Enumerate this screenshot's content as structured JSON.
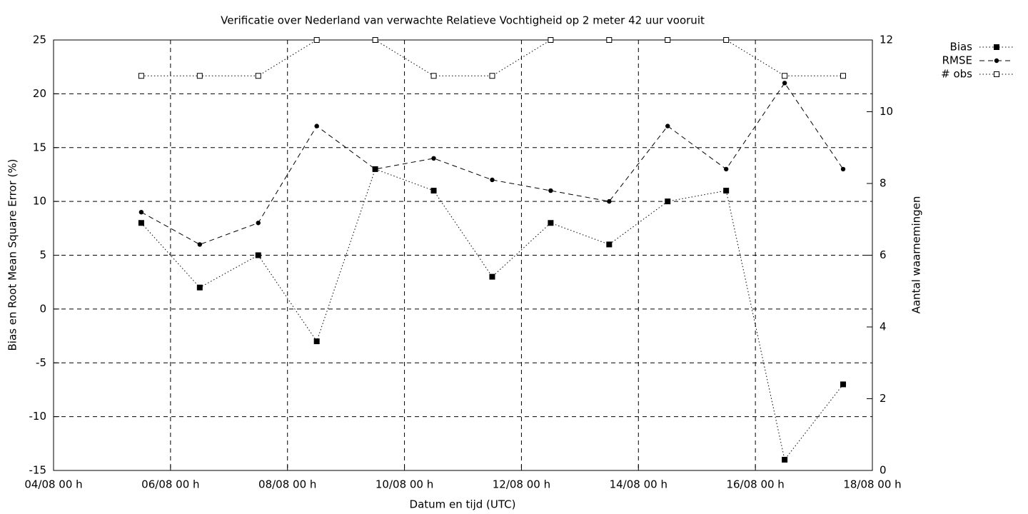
{
  "chart_data": {
    "type": "line",
    "title": "Verificatie over Nederland van verwachte Relatieve Vochtigheid op 2 meter 42 uur vooruit",
    "xlabel": "Datum en tijd (UTC)",
    "ylabel": "Bias en Root Mean Square Error (%)",
    "y2label": "Aantal waarnemingen",
    "x": [
      "05/08 12 h",
      "06/08 12 h",
      "07/08 12 h",
      "08/08 12 h",
      "09/08 12 h",
      "10/08 12 h",
      "11/08 12 h",
      "12/08 12 h",
      "13/08 12 h",
      "14/08 12 h",
      "15/08 12 h",
      "16/08 12 h",
      "17/08 12 h"
    ],
    "series": [
      {
        "name": "Bias",
        "color": "#000000",
        "dash": "dotted",
        "marker": "filled-square",
        "values": [
          8,
          2,
          5,
          -3,
          13,
          11,
          3,
          8,
          6,
          10,
          11,
          -14,
          -7
        ]
      },
      {
        "name": "RMSE",
        "color": "#000000",
        "dash": "dashed",
        "marker": "filled-circle",
        "values": [
          9,
          6,
          8,
          17,
          13,
          14,
          12,
          11,
          10,
          17,
          13,
          21,
          13
        ]
      },
      {
        "name": "# obs",
        "color": "#000000",
        "dash": "dotted",
        "marker": "open-square",
        "axis": "y2",
        "values": [
          11,
          11,
          11,
          12,
          12,
          11,
          11,
          12,
          12,
          12,
          12,
          11,
          11
        ]
      }
    ],
    "xlim": [
      "04/08 00 h",
      "18/08 00 h"
    ],
    "xticks": [
      "04/08 00 h",
      "06/08 00 h",
      "08/08 00 h",
      "10/08 00 h",
      "12/08 00 h",
      "14/08 00 h",
      "16/08 00 h",
      "18/08 00 h"
    ],
    "ylim": [
      -15,
      25
    ],
    "yticks": [
      -15,
      -10,
      -5,
      0,
      5,
      10,
      15,
      20,
      25
    ],
    "y2lim": [
      0,
      12
    ],
    "y2ticks": [
      0,
      2,
      4,
      6,
      8,
      10,
      12
    ],
    "grid": true,
    "legend": "outside-top-right"
  }
}
